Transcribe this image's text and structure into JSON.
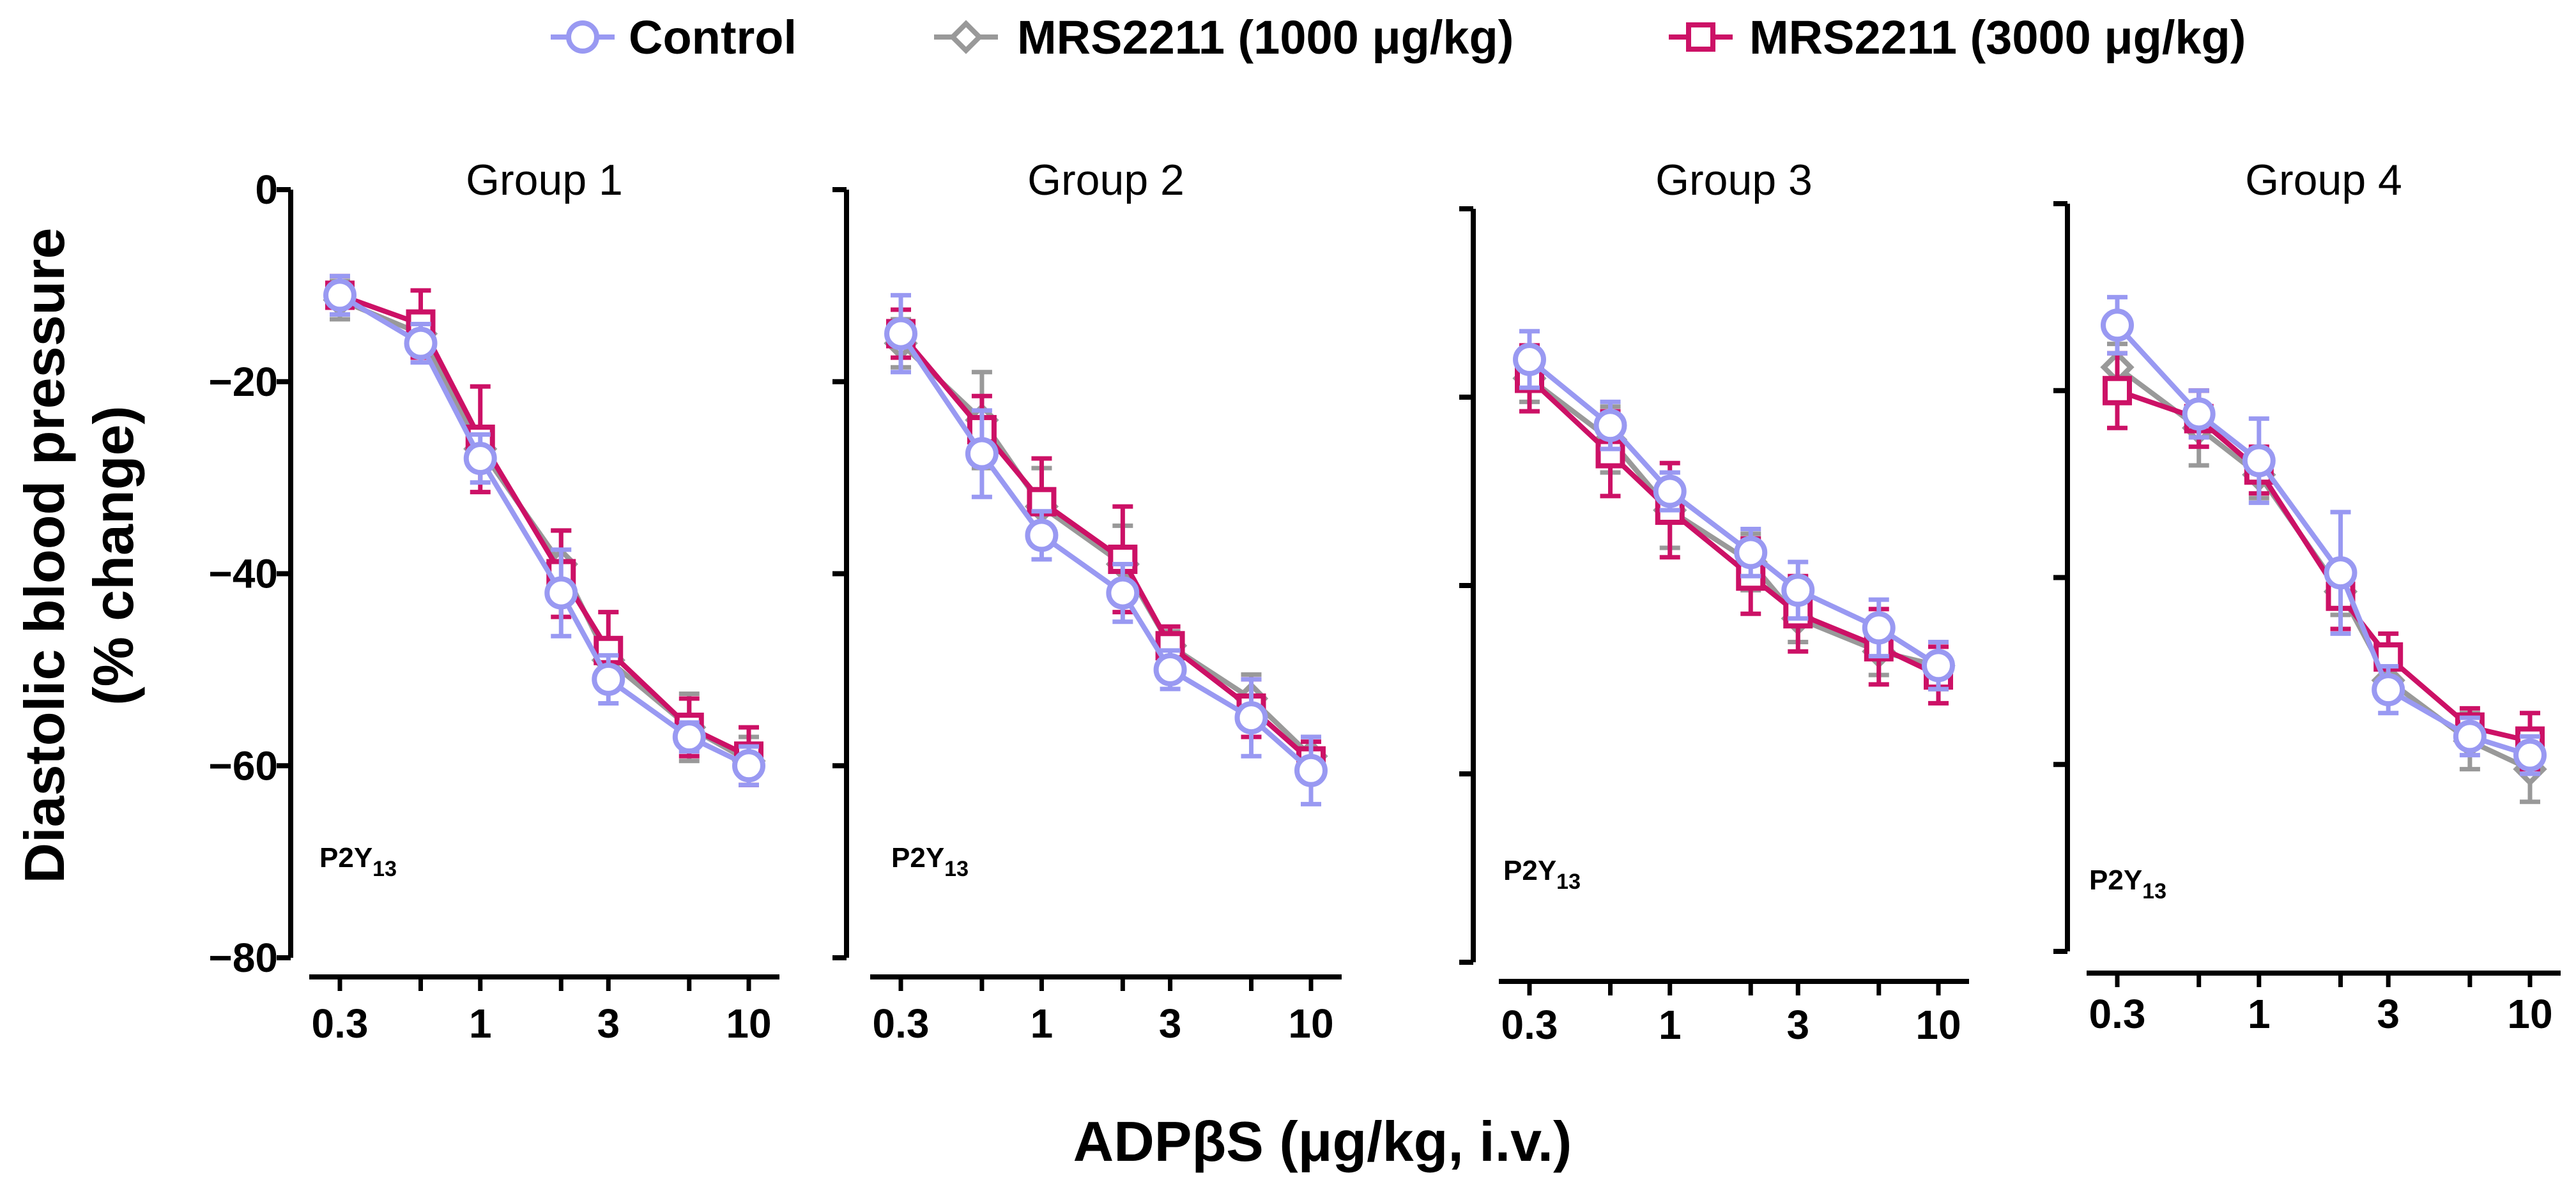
{
  "chart_data": {
    "type": "line",
    "xlabel": "ADPβS (μg/kg, i.v.)",
    "ylabel_line1": "Diastolic blood pressure",
    "ylabel_line2": "(% change)",
    "x_scale": "log",
    "x": [
      0.3,
      0.6,
      1,
      2,
      3,
      6,
      10
    ],
    "x_ticks": [
      0.3,
      1,
      3,
      10
    ],
    "x_tick_labels": [
      "0.3",
      "1",
      "3",
      "10"
    ],
    "ylim": [
      -80,
      0
    ],
    "y_ticks": [
      0,
      -20,
      -40,
      -60,
      -80
    ],
    "y_tick_labels": [
      "0",
      "−20",
      "−40",
      "−60",
      "−80"
    ],
    "annotation_main": "P2Y",
    "annotation_sub": "13",
    "legend": [
      {
        "name": "Control",
        "color": "#9999f2",
        "marker": "circle"
      },
      {
        "name": "MRS2211 (1000 μg/kg)",
        "color": "#999999",
        "marker": "diamond"
      },
      {
        "name": "MRS2211 (3000 μg/kg)",
        "color": "#cc1166",
        "marker": "square"
      }
    ],
    "panels": [
      {
        "title": "Group 1",
        "series": [
          {
            "name": "Control",
            "values": [
              -11,
              -16,
              -28,
              -42,
              -51,
              -57,
              -60
            ],
            "errors": [
              2,
              2,
              2.5,
              4.5,
              2.5,
              1.5,
              2
            ]
          },
          {
            "name": "MRS2211 (1000 μg/kg)",
            "values": [
              -11.5,
              -15,
              -27,
              -39,
              -49,
              -56,
              -59.5
            ],
            "errors": [
              2,
              2,
              2,
              3.5,
              2,
              3.5,
              2.5
            ]
          },
          {
            "name": "MRS2211 (3000 μg/kg)",
            "values": [
              -11,
              -14,
              -26,
              -40,
              -48,
              -56,
              -59
            ],
            "errors": [
              2,
              3.5,
              5.5,
              4.5,
              4,
              3,
              3
            ]
          }
        ]
      },
      {
        "title": "Group 2",
        "series": [
          {
            "name": "Control",
            "values": [
              -15,
              -27.5,
              -36,
              -42,
              -50,
              -55,
              -60.5
            ],
            "errors": [
              4,
              4.5,
              2.5,
              3,
              2,
              4,
              3.5
            ]
          },
          {
            "name": "MRS2211 (1000 μg/kg)",
            "values": [
              -16,
              -24,
              -33,
              -39,
              -47.5,
              -53,
              -59
            ],
            "errors": [
              2.5,
              5,
              4,
              4,
              1.5,
              2.5,
              2
            ]
          },
          {
            "name": "MRS2211 (3000 μg/kg)",
            "values": [
              -15,
              -25,
              -32.5,
              -38.5,
              -47.5,
              -54,
              -59.5
            ],
            "errors": [
              2.5,
              3.5,
              4.5,
              5.5,
              2,
              3,
              2
            ]
          }
        ]
      },
      {
        "title": "Group 3",
        "series": [
          {
            "name": "Control",
            "values": [
              -16,
              -23,
              -30,
              -36.5,
              -40.5,
              -44.5,
              -48.5
            ],
            "errors": [
              3,
              2.5,
              2,
              2.5,
              3,
              3,
              2.5
            ]
          },
          {
            "name": "MRS2211 (1000 μg/kg)",
            "values": [
              -18,
              -24.5,
              -32,
              -37.5,
              -43.5,
              -47,
              -48.5
            ],
            "errors": [
              2.5,
              3.5,
              4,
              3,
              2.5,
              2.5,
              2.5
            ]
          },
          {
            "name": "MRS2211 (3000 μg/kg)",
            "values": [
              -18,
              -26,
              -32,
              -39,
              -43,
              -46.5,
              -49.5
            ],
            "errors": [
              3.5,
              4.5,
              5,
              4,
              4,
              4,
              3
            ]
          }
        ]
      },
      {
        "title": "Group 4",
        "series": [
          {
            "name": "Control",
            "values": [
              -13,
              -22.5,
              -27.5,
              -39.5,
              -52,
              -57,
              -59
            ],
            "errors": [
              3,
              2.5,
              4.5,
              6.5,
              2.5,
              2,
              2
            ]
          },
          {
            "name": "MRS2211 (1000 μg/kg)",
            "values": [
              -17.5,
              -24,
              -29,
              -41.5,
              -51,
              -57.5,
              -60.5
            ],
            "errors": [
              2.5,
              4,
              2.5,
              2.5,
              2,
              3,
              3.5
            ]
          },
          {
            "name": "MRS2211 (3000 μg/kg)",
            "values": [
              -20,
              -23,
              -28.5,
              -42,
              -48.5,
              -56,
              -57.5
            ],
            "errors": [
              4,
              3,
              2.5,
              3.5,
              2.5,
              2,
              3
            ]
          }
        ]
      }
    ]
  }
}
